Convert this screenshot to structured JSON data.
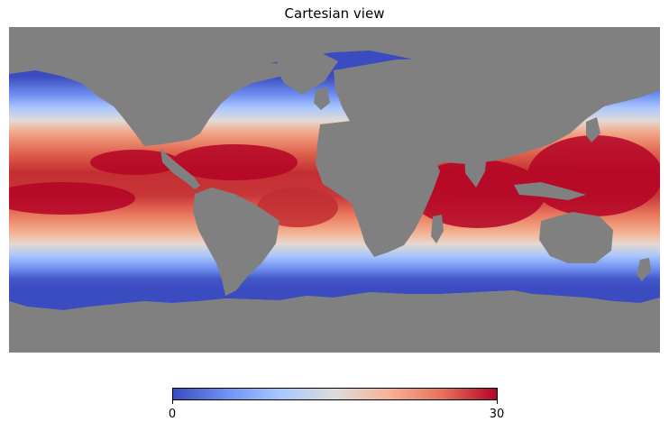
{
  "title": "Cartesian view",
  "colors": {
    "land": "#808080",
    "background": "#ffffff",
    "colormap": [
      "#3b4cc0",
      "#7092f2",
      "#aac7fd",
      "#dddcdc",
      "#f6b396",
      "#e7705a",
      "#b40426"
    ]
  },
  "colorbar": {
    "min_label": "0",
    "max_label": "30",
    "orientation": "horizontal",
    "colormap_name": "coolwarm"
  },
  "projection": "cartesian"
}
